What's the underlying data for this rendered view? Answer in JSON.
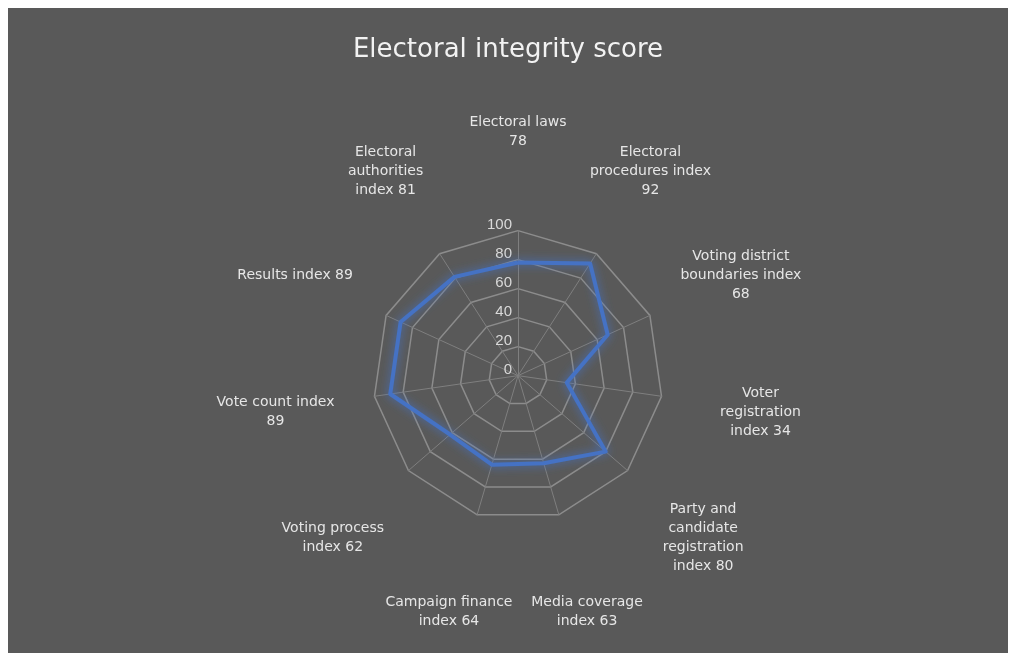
{
  "chart_data": {
    "type": "radar",
    "title": "Electoral integrity score",
    "categories": [
      "Electoral laws 78",
      "Electoral procedures index 92",
      "Voting district boundaries index 68",
      "Voter registration index 34",
      "Party and candidate registration index 80",
      "Media coverage index 63",
      "Campaign finance index 64",
      "Voting process index 62",
      "Vote count index 89",
      "Results index 89",
      "Electoral authorities index 81"
    ],
    "series": [
      {
        "color": "#4472c4",
        "values": [
          78,
          92,
          68,
          34,
          80,
          63,
          64,
          62,
          89,
          89,
          81
        ]
      }
    ],
    "ylim": [
      0,
      100
    ],
    "yticks": [
      0,
      20,
      40,
      60,
      80,
      100
    ],
    "marker": "none",
    "grid": true
  }
}
